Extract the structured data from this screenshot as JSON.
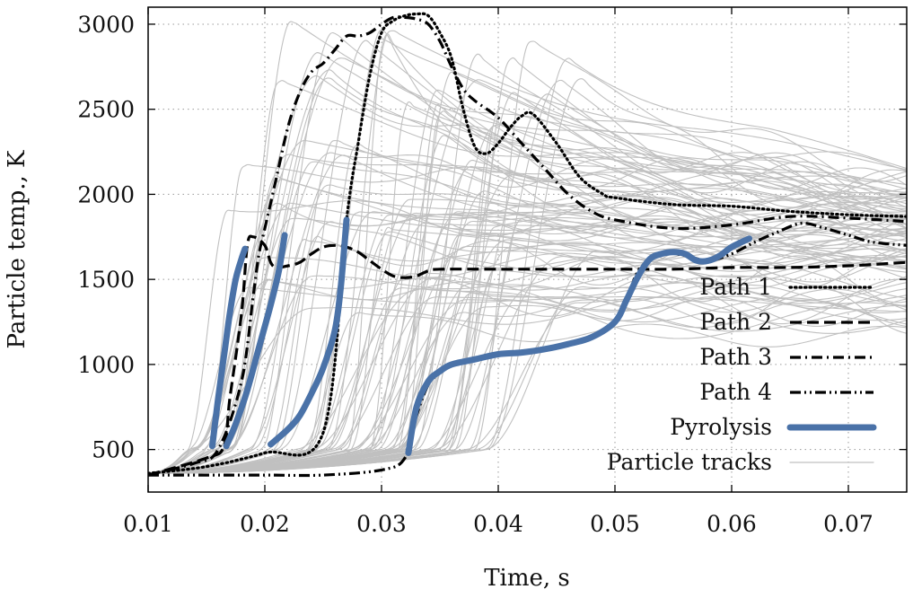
{
  "chart_data": {
    "type": "line",
    "xlabel": "Time, s",
    "ylabel": "Particle temp., K",
    "xlim": [
      0.01,
      0.075
    ],
    "ylim": [
      250,
      3100
    ],
    "xticks": [
      "0.01",
      "0.02",
      "0.03",
      "0.04",
      "0.05",
      "0.06",
      "0.07"
    ],
    "xtick_values": [
      0.01,
      0.02,
      0.03,
      0.04,
      0.05,
      0.06,
      0.07
    ],
    "yticks": [
      "500",
      "1000",
      "1500",
      "2000",
      "2500",
      "3000"
    ],
    "ytick_values": [
      500,
      1000,
      1500,
      2000,
      2500,
      3000
    ],
    "grid": true,
    "legend_position": "lower-right",
    "colors": {
      "pyrolysis": "#4a72a8",
      "tracks": "#c0c0c0",
      "paths": "#000000"
    },
    "series": [
      {
        "name": "Path 1",
        "style": "dotted",
        "x": [
          0.01,
          0.015,
          0.02,
          0.025,
          0.027,
          0.028,
          0.029,
          0.03,
          0.031,
          0.032,
          0.033,
          0.034,
          0.035,
          0.036,
          0.037,
          0.038,
          0.039,
          0.04,
          0.041,
          0.042,
          0.043,
          0.045,
          0.047,
          0.049,
          0.05,
          0.055,
          0.06,
          0.065,
          0.07,
          0.075
        ],
        "y": [
          360,
          400,
          480,
          600,
          1850,
          2300,
          2700,
          2950,
          3020,
          3050,
          3060,
          3050,
          2950,
          2800,
          2500,
          2280,
          2240,
          2300,
          2390,
          2460,
          2470,
          2300,
          2100,
          2000,
          1980,
          1940,
          1930,
          1900,
          1880,
          1870
        ]
      },
      {
        "name": "Path 2",
        "style": "dashed",
        "x": [
          0.01,
          0.015,
          0.0165,
          0.017,
          0.018,
          0.0185,
          0.019,
          0.02,
          0.0205,
          0.021,
          0.022,
          0.023,
          0.024,
          0.025,
          0.026,
          0.027,
          0.028,
          0.029,
          0.03,
          0.031,
          0.032,
          0.033,
          0.034,
          0.035,
          0.04,
          0.045,
          0.05,
          0.055,
          0.06,
          0.065,
          0.07,
          0.075
        ],
        "y": [
          350,
          450,
          520,
          800,
          1300,
          1700,
          1750,
          1700,
          1600,
          1570,
          1580,
          1600,
          1650,
          1690,
          1700,
          1690,
          1660,
          1610,
          1560,
          1520,
          1510,
          1520,
          1550,
          1560,
          1560,
          1560,
          1560,
          1560,
          1570,
          1570,
          1580,
          1600
        ]
      },
      {
        "name": "Path 3",
        "style": "dash-dot",
        "x": [
          0.01,
          0.014,
          0.016,
          0.018,
          0.019,
          0.0195,
          0.02,
          0.021,
          0.022,
          0.023,
          0.024,
          0.025,
          0.026,
          0.027,
          0.028,
          0.029,
          0.03,
          0.031,
          0.032,
          0.033,
          0.034,
          0.035,
          0.036,
          0.037,
          0.038,
          0.04,
          0.042,
          0.044,
          0.046,
          0.048,
          0.05,
          0.055,
          0.06,
          0.065,
          0.07,
          0.075
        ],
        "y": [
          350,
          420,
          500,
          900,
          1400,
          1650,
          1800,
          2100,
          2400,
          2600,
          2720,
          2770,
          2850,
          2930,
          2930,
          2950,
          3000,
          3040,
          3040,
          3030,
          3000,
          2900,
          2750,
          2620,
          2550,
          2450,
          2300,
          2150,
          2000,
          1900,
          1850,
          1800,
          1820,
          1870,
          1860,
          1840
        ]
      },
      {
        "name": "Path 4",
        "style": "dash-dot-dot",
        "x": [
          0.01,
          0.015,
          0.02,
          0.025,
          0.03,
          0.032,
          0.033,
          0.034,
          0.035,
          0.036,
          0.037,
          0.038,
          0.04,
          0.045,
          0.05,
          0.052,
          0.054,
          0.056,
          0.058,
          0.06,
          0.062,
          0.064,
          0.066,
          0.068,
          0.07,
          0.072,
          0.075
        ],
        "y": [
          350,
          350,
          350,
          350,
          380,
          450,
          700,
          880,
          950,
          1000,
          1020,
          1040,
          1060,
          1100,
          1250,
          1550,
          1650,
          1640,
          1610,
          1650,
          1720,
          1780,
          1830,
          1800,
          1760,
          1720,
          1700
        ]
      },
      {
        "name": "Pyrolysis",
        "style": "thick",
        "segments": [
          {
            "x": [
              0.0155,
              0.016,
              0.0165,
              0.017,
              0.0175,
              0.018,
              0.0183
            ],
            "y": [
              520,
              800,
              1050,
              1300,
              1500,
              1620,
              1680
            ]
          },
          {
            "x": [
              0.0167,
              0.0175,
              0.0185,
              0.0195,
              0.0205,
              0.0212,
              0.0217
            ],
            "y": [
              520,
              650,
              850,
              1100,
              1350,
              1550,
              1760
            ]
          },
          {
            "x": [
              0.0205,
              0.022,
              0.023,
              0.024,
              0.025,
              0.026,
              0.0265,
              0.027
            ],
            "y": [
              530,
              620,
              700,
              830,
              980,
              1200,
              1450,
              1850
            ]
          },
          {
            "x": [
              0.0323,
              0.033,
              0.034,
              0.035,
              0.036,
              0.038,
              0.04,
              0.042,
              0.044,
              0.046,
              0.048,
              0.05,
              0.051,
              0.052,
              0.053,
              0.054,
              0.055,
              0.056,
              0.057,
              0.058,
              0.059,
              0.06,
              0.0615
            ],
            "y": [
              480,
              750,
              900,
              960,
              1000,
              1030,
              1060,
              1070,
              1090,
              1120,
              1160,
              1250,
              1380,
              1520,
              1620,
              1650,
              1660,
              1650,
              1610,
              1610,
              1640,
              1690,
              1740
            ]
          }
        ]
      },
      {
        "name": "Particle tracks",
        "style": "thin"
      }
    ]
  }
}
